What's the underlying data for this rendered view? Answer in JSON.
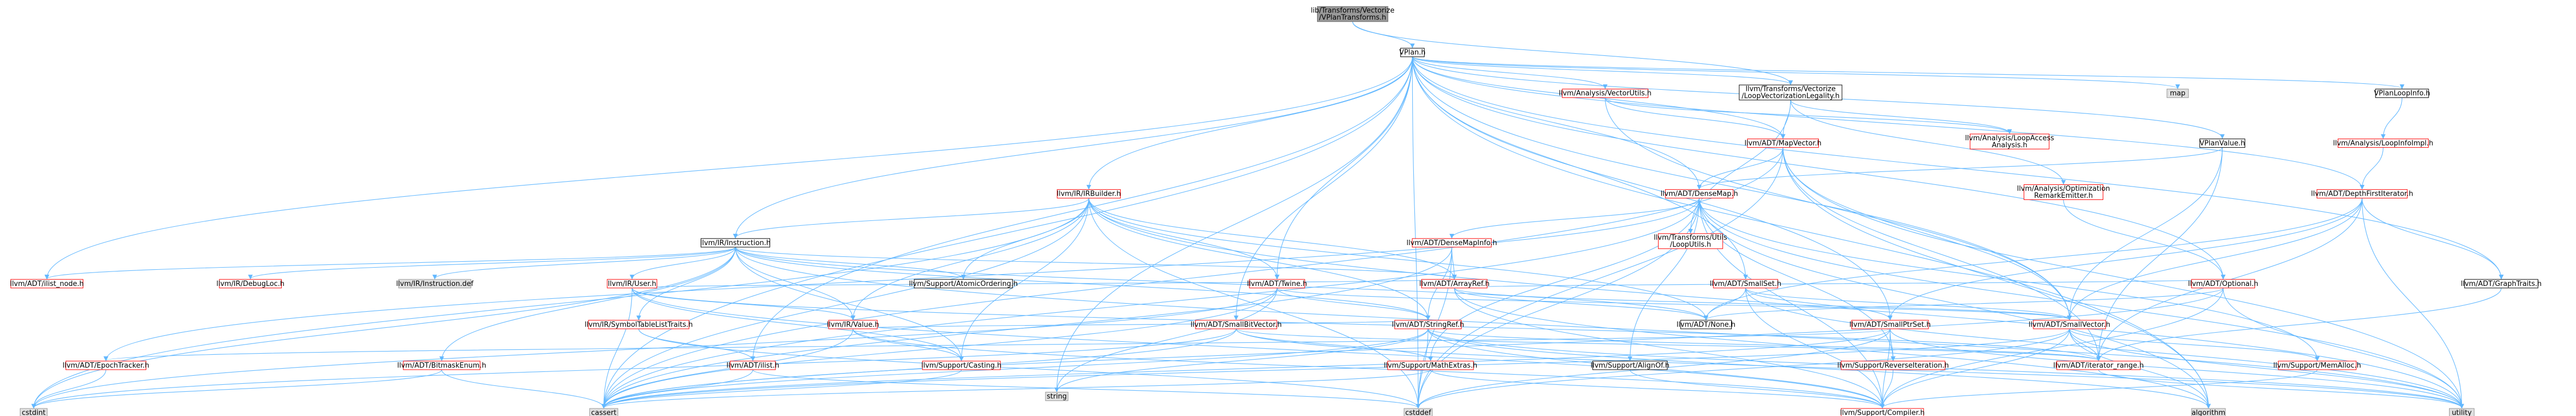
{
  "colors": {
    "red_border": "#ff0000",
    "gray_border": "#999999",
    "root_fill": "#999999",
    "root_border": "#666666",
    "node_fill": "#ffffff",
    "gray_fill": "#e0e0e0",
    "edge": "#63b8ff",
    "text": "#000000"
  },
  "nodes": [
    {
      "id": "root",
      "label": [
        "lib/Transforms/Vectorize",
        "/VPlanTransforms.h"
      ],
      "style": "root"
    },
    {
      "id": "vplan",
      "label": [
        "VPlan.h"
      ],
      "style": "black"
    },
    {
      "id": "legality",
      "label": [
        "llvm/Transforms/Vectorize",
        "/LoopVectorizationLegality.h"
      ],
      "style": "black"
    },
    {
      "id": "vectorutils",
      "label": [
        "llvm/Analysis/VectorUtils.h"
      ],
      "style": "red"
    },
    {
      "id": "map",
      "label": [
        "map"
      ],
      "style": "gray"
    },
    {
      "id": "vplanloopinfo",
      "label": [
        "VPlanLoopInfo.h"
      ],
      "style": "black"
    },
    {
      "id": "mapvector",
      "label": [
        "llvm/ADT/MapVector.h"
      ],
      "style": "red"
    },
    {
      "id": "loopaccess",
      "label": [
        "llvm/Analysis/LoopAccess",
        "Analysis.h"
      ],
      "style": "red"
    },
    {
      "id": "vplanvalue",
      "label": [
        "VPlanValue.h"
      ],
      "style": "black"
    },
    {
      "id": "loopinfoimpl",
      "label": [
        "llvm/Analysis/LoopInfoImpl.h"
      ],
      "style": "red"
    },
    {
      "id": "optremark",
      "label": [
        "llvm/Analysis/Optimization",
        "RemarkEmitter.h"
      ],
      "style": "red"
    },
    {
      "id": "irbuilder",
      "label": [
        "llvm/IR/IRBuilder.h"
      ],
      "style": "red"
    },
    {
      "id": "densemap",
      "label": [
        "llvm/ADT/DenseMap.h"
      ],
      "style": "red"
    },
    {
      "id": "dfiterator",
      "label": [
        "llvm/ADT/DepthFirstIterator.h"
      ],
      "style": "red"
    },
    {
      "id": "instruction",
      "label": [
        "llvm/IR/Instruction.h"
      ],
      "style": "black"
    },
    {
      "id": "densemapinfo",
      "label": [
        "llvm/ADT/DenseMapInfo.h"
      ],
      "style": "red"
    },
    {
      "id": "looputils",
      "label": [
        "llvm/Transforms/Utils",
        "/LoopUtils.h"
      ],
      "style": "red"
    },
    {
      "id": "ilistnode",
      "label": [
        "llvm/ADT/ilist_node.h"
      ],
      "style": "red"
    },
    {
      "id": "debugloc",
      "label": [
        "llvm/IR/DebugLoc.h"
      ],
      "style": "red"
    },
    {
      "id": "instrdef",
      "label": [
        "llvm/IR/Instruction.def"
      ],
      "style": "gray"
    },
    {
      "id": "user",
      "label": [
        "llvm/IR/User.h"
      ],
      "style": "red"
    },
    {
      "id": "atomicordering",
      "label": [
        "llvm/Support/AtomicOrdering.h"
      ],
      "style": "black"
    },
    {
      "id": "twine",
      "label": [
        "llvm/ADT/Twine.h"
      ],
      "style": "red"
    },
    {
      "id": "arrayref",
      "label": [
        "llvm/ADT/ArrayRef.h"
      ],
      "style": "red"
    },
    {
      "id": "smallset",
      "label": [
        "llvm/ADT/SmallSet.h"
      ],
      "style": "red"
    },
    {
      "id": "optional",
      "label": [
        "llvm/ADT/Optional.h"
      ],
      "style": "red"
    },
    {
      "id": "graphtraits",
      "label": [
        "llvm/ADT/GraphTraits.h"
      ],
      "style": "black"
    },
    {
      "id": "symtablelist",
      "label": [
        "llvm/IR/SymbolTableListTraits.h"
      ],
      "style": "red"
    },
    {
      "id": "value",
      "label": [
        "llvm/IR/Value.h"
      ],
      "style": "red"
    },
    {
      "id": "smallbitvector",
      "label": [
        "llvm/ADT/SmallBitVector.h"
      ],
      "style": "red"
    },
    {
      "id": "stringref",
      "label": [
        "llvm/ADT/StringRef.h"
      ],
      "style": "red"
    },
    {
      "id": "none",
      "label": [
        "llvm/ADT/None.h"
      ],
      "style": "black"
    },
    {
      "id": "smallptrset",
      "label": [
        "llvm/ADT/SmallPtrSet.h"
      ],
      "style": "red"
    },
    {
      "id": "smallvector",
      "label": [
        "llvm/ADT/SmallVector.h"
      ],
      "style": "red"
    },
    {
      "id": "epochtracker",
      "label": [
        "llvm/ADT/EpochTracker.h"
      ],
      "style": "red"
    },
    {
      "id": "bitmask",
      "label": [
        "llvm/ADT/BitmaskEnum.h"
      ],
      "style": "red"
    },
    {
      "id": "ilist",
      "label": [
        "llvm/ADT/ilist.h"
      ],
      "style": "red"
    },
    {
      "id": "casting",
      "label": [
        "llvm/Support/Casting.h"
      ],
      "style": "red"
    },
    {
      "id": "string",
      "label": [
        "string"
      ],
      "style": "gray"
    },
    {
      "id": "mathextras",
      "label": [
        "llvm/Support/MathExtras.h"
      ],
      "style": "red"
    },
    {
      "id": "alignof",
      "label": [
        "llvm/Support/AlignOf.h"
      ],
      "style": "black"
    },
    {
      "id": "reverseiter",
      "label": [
        "llvm/Support/ReverseIteration.h"
      ],
      "style": "red"
    },
    {
      "id": "iterrange",
      "label": [
        "llvm/ADT/iterator_range.h"
      ],
      "style": "red"
    },
    {
      "id": "memalloc",
      "label": [
        "llvm/Support/MemAlloc.h"
      ],
      "style": "red"
    },
    {
      "id": "cstdint",
      "label": [
        "cstdint"
      ],
      "style": "gray"
    },
    {
      "id": "cassert",
      "label": [
        "cassert"
      ],
      "style": "gray"
    },
    {
      "id": "cstddef",
      "label": [
        "cstddef"
      ],
      "style": "gray"
    },
    {
      "id": "compiler",
      "label": [
        "llvm/Support/Compiler.h"
      ],
      "style": "red"
    },
    {
      "id": "algorithm",
      "label": [
        "algorithm"
      ],
      "style": "gray"
    },
    {
      "id": "utility",
      "label": [
        "utility"
      ],
      "style": "gray"
    }
  ],
  "edges": [
    [
      "root",
      "vplan"
    ],
    [
      "root",
      "legality"
    ],
    [
      "vplan",
      "vectorutils"
    ],
    [
      "vplan",
      "map"
    ],
    [
      "vplan",
      "vplanloopinfo"
    ],
    [
      "vplan",
      "legality"
    ],
    [
      "vplan",
      "irbuilder"
    ],
    [
      "vplan",
      "densemap"
    ],
    [
      "vplan",
      "dfiterator"
    ],
    [
      "vplan",
      "instruction"
    ],
    [
      "vplan",
      "vplanvalue"
    ],
    [
      "vplan",
      "mapvector"
    ],
    [
      "vplan",
      "twine"
    ],
    [
      "vplan",
      "smallset"
    ],
    [
      "vplan",
      "optional"
    ],
    [
      "vplan",
      "graphtraits"
    ],
    [
      "vplan",
      "smallbitvector"
    ],
    [
      "vplan",
      "smallptrset"
    ],
    [
      "vplan",
      "smallvector"
    ],
    [
      "vplan",
      "ilist"
    ],
    [
      "vplan",
      "ilistnode"
    ],
    [
      "vplan",
      "cstddef"
    ],
    [
      "vplan",
      "string"
    ],
    [
      "vplan",
      "algorithm"
    ],
    [
      "vplan",
      "cassert"
    ],
    [
      "legality",
      "mapvector"
    ],
    [
      "legality",
      "loopaccess"
    ],
    [
      "legality",
      "optremark"
    ],
    [
      "legality",
      "looputils"
    ],
    [
      "vectorutils",
      "mapvector"
    ],
    [
      "vectorutils",
      "loopaccess"
    ],
    [
      "vectorutils",
      "smallvector"
    ],
    [
      "vplanloopinfo",
      "loopinfoimpl"
    ],
    [
      "loopinfoimpl",
      "dfiterator"
    ],
    [
      "mapvector",
      "densemap"
    ],
    [
      "mapvector",
      "smallvector"
    ],
    [
      "mapvector",
      "cassert"
    ],
    [
      "mapvector",
      "cstddef"
    ],
    [
      "mapvector",
      "iterrange"
    ],
    [
      "mapvector",
      "utility"
    ],
    [
      "mapvector",
      "algorithm"
    ],
    [
      "vplanvalue",
      "densemap"
    ],
    [
      "vplanvalue",
      "smallvector"
    ],
    [
      "vplanvalue",
      "iterrange"
    ],
    [
      "optremark",
      "optional"
    ],
    [
      "irbuilder",
      "instruction"
    ],
    [
      "irbuilder",
      "arrayref"
    ],
    [
      "irbuilder",
      "none"
    ],
    [
      "irbuilder",
      "stringref"
    ],
    [
      "irbuilder",
      "twine"
    ],
    [
      "irbuilder",
      "value"
    ],
    [
      "irbuilder",
      "atomicordering"
    ],
    [
      "irbuilder",
      "casting"
    ],
    [
      "irbuilder",
      "cassert"
    ],
    [
      "irbuilder",
      "cstdint"
    ],
    [
      "irbuilder",
      "cstddef"
    ],
    [
      "irbuilder",
      "utility"
    ],
    [
      "densemap",
      "densemapinfo"
    ],
    [
      "densemap",
      "epochtracker"
    ],
    [
      "densemap",
      "alignof"
    ],
    [
      "densemap",
      "compiler"
    ],
    [
      "densemap",
      "mathextras"
    ],
    [
      "densemap",
      "memalloc"
    ],
    [
      "densemap",
      "reverseiter"
    ],
    [
      "densemap",
      "algorithm"
    ],
    [
      "densemap",
      "cassert"
    ],
    [
      "densemap",
      "cstddef"
    ],
    [
      "densemap",
      "utility"
    ],
    [
      "dfiterator",
      "graphtraits"
    ],
    [
      "dfiterator",
      "iterrange"
    ],
    [
      "dfiterator",
      "smallptrset"
    ],
    [
      "dfiterator",
      "smallvector"
    ],
    [
      "dfiterator",
      "none"
    ],
    [
      "dfiterator",
      "utility"
    ],
    [
      "instruction",
      "ilistnode"
    ],
    [
      "instruction",
      "debugloc"
    ],
    [
      "instruction",
      "instrdef"
    ],
    [
      "instruction",
      "user"
    ],
    [
      "instruction",
      "atomicordering"
    ],
    [
      "instruction",
      "bitmask"
    ],
    [
      "instruction",
      "none"
    ],
    [
      "instruction",
      "symtablelist"
    ],
    [
      "instruction",
      "value"
    ],
    [
      "instruction",
      "stringref"
    ],
    [
      "instruction",
      "casting"
    ],
    [
      "instruction",
      "arrayref"
    ],
    [
      "instruction",
      "cstdint"
    ],
    [
      "instruction",
      "utility"
    ],
    [
      "densemapinfo",
      "arrayref"
    ],
    [
      "densemapinfo",
      "stringref"
    ],
    [
      "densemapinfo",
      "cstddef"
    ],
    [
      "densemapinfo",
      "cassert"
    ],
    [
      "user",
      "value"
    ],
    [
      "user",
      "casting"
    ],
    [
      "user",
      "compiler"
    ],
    [
      "user",
      "cassert"
    ],
    [
      "user",
      "iterrange"
    ],
    [
      "user",
      "arrayref"
    ],
    [
      "twine",
      "smallvector"
    ],
    [
      "twine",
      "stringref"
    ],
    [
      "twine",
      "string"
    ],
    [
      "twine",
      "cassert"
    ],
    [
      "twine",
      "cstdint"
    ],
    [
      "arrayref",
      "smallvector"
    ],
    [
      "arrayref",
      "none"
    ],
    [
      "arrayref",
      "optional"
    ],
    [
      "arrayref",
      "compiler"
    ],
    [
      "arrayref",
      "algorithm"
    ],
    [
      "smallset",
      "smallptrset"
    ],
    [
      "smallset",
      "smallvector"
    ],
    [
      "smallset",
      "none"
    ],
    [
      "smallset",
      "compiler"
    ],
    [
      "smallset",
      "utility"
    ],
    [
      "optional",
      "none"
    ],
    [
      "optional",
      "compiler"
    ],
    [
      "optional",
      "cassert"
    ],
    [
      "optional",
      "utility"
    ],
    [
      "graphtraits",
      "iterrange"
    ],
    [
      "symtablelist",
      "ilist"
    ],
    [
      "symtablelist",
      "cstddef"
    ],
    [
      "value",
      "casting"
    ],
    [
      "value",
      "compiler"
    ],
    [
      "value",
      "stringref"
    ],
    [
      "value",
      "cassert"
    ],
    [
      "smallbitvector",
      "mathextras"
    ],
    [
      "smallbitvector",
      "iterrange"
    ],
    [
      "smallbitvector",
      "cassert"
    ],
    [
      "smallbitvector",
      "cstdint"
    ],
    [
      "smallbitvector",
      "utility"
    ],
    [
      "stringref",
      "compiler"
    ],
    [
      "stringref",
      "iterrange"
    ],
    [
      "stringref",
      "string"
    ],
    [
      "stringref",
      "cassert"
    ],
    [
      "stringref",
      "algorithm"
    ],
    [
      "stringref",
      "cstddef"
    ],
    [
      "stringref",
      "utility"
    ],
    [
      "smallptrset",
      "epochtracker"
    ],
    [
      "smallptrset",
      "compiler"
    ],
    [
      "smallptrset",
      "reverseiter"
    ],
    [
      "smallptrset",
      "cassert"
    ],
    [
      "smallptrset",
      "cstddef"
    ],
    [
      "smallptrset",
      "utility"
    ],
    [
      "smallvector",
      "iterrange"
    ],
    [
      "smallvector",
      "compiler"
    ],
    [
      "smallvector",
      "memalloc"
    ],
    [
      "smallvector",
      "algorithm"
    ],
    [
      "smallvector",
      "cassert"
    ],
    [
      "smallvector",
      "cstddef"
    ],
    [
      "smallvector",
      "utility"
    ],
    [
      "epochtracker",
      "cstdint"
    ],
    [
      "bitmask",
      "cassert"
    ],
    [
      "bitmask",
      "cstdint"
    ],
    [
      "ilist",
      "cassert"
    ],
    [
      "ilist",
      "cstddef"
    ],
    [
      "casting",
      "cassert"
    ],
    [
      "mathextras",
      "cassert"
    ],
    [
      "mathextras",
      "compiler"
    ],
    [
      "alignof",
      "compiler"
    ],
    [
      "reverseiter",
      "compiler"
    ],
    [
      "iterrange",
      "utility"
    ],
    [
      "memalloc",
      "compiler"
    ]
  ]
}
